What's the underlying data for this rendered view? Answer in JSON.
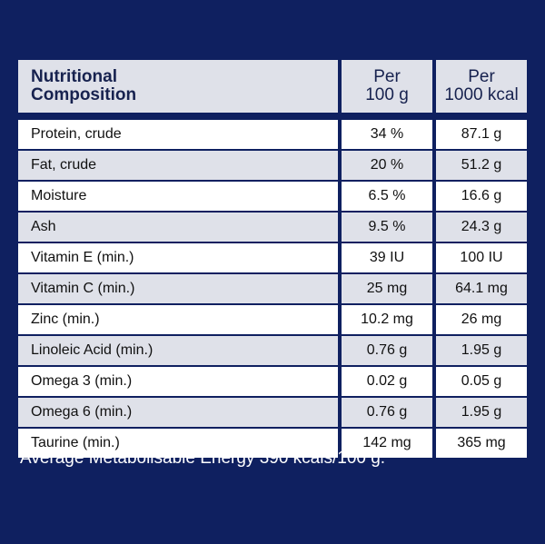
{
  "header": {
    "label_line1": "Nutritional",
    "label_line2": "Composition",
    "col1_line1": "Per",
    "col1_line2": "100 g",
    "col2_line1": "Per",
    "col2_line2": "1000 kcal"
  },
  "rows": [
    {
      "label": "Protein, crude",
      "per100g": "34 %",
      "per1000kcal": "87.1 g"
    },
    {
      "label": "Fat, crude",
      "per100g": "20 %",
      "per1000kcal": "51.2 g"
    },
    {
      "label": "Moisture",
      "per100g": "6.5 %",
      "per1000kcal": "16.6 g"
    },
    {
      "label": "Ash",
      "per100g": "9.5 %",
      "per1000kcal": "24.3 g"
    },
    {
      "label": "Vitamin E (min.)",
      "per100g": "39 IU",
      "per1000kcal": "100 IU"
    },
    {
      "label": "Vitamin C (min.)",
      "per100g": "25 mg",
      "per1000kcal": "64.1 mg"
    },
    {
      "label": "Zinc (min.)",
      "per100g": "10.2 mg",
      "per1000kcal": "26 mg"
    },
    {
      "label": "Linoleic Acid (min.)",
      "per100g": "0.76 g",
      "per1000kcal": "1.95 g"
    },
    {
      "label": "Omega 3 (min.)",
      "per100g": "0.02 g",
      "per1000kcal": "0.05 g"
    },
    {
      "label": "Omega 6 (min.)",
      "per100g": "0.76 g",
      "per1000kcal": "1.95 g"
    },
    {
      "label": "Taurine (min.)",
      "per100g": "142 mg",
      "per1000kcal": "365 mg"
    }
  ],
  "footnote": "Average Metabolisable Energy 390 kcals/100 g.",
  "colors": {
    "background": "#0f2060",
    "header_bg": "#dfe1e9",
    "header_text": "#17224f"
  }
}
